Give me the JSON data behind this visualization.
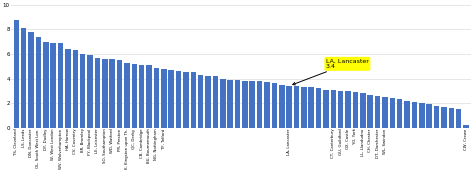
{
  "values": [
    8.8,
    8.1,
    7.8,
    7.4,
    7.0,
    6.9,
    6.9,
    6.4,
    6.3,
    6.0,
    5.9,
    5.7,
    5.6,
    5.6,
    5.5,
    5.3,
    5.2,
    5.1,
    5.1,
    4.9,
    4.8,
    4.7,
    4.6,
    4.5,
    4.5,
    4.3,
    4.2,
    4.2,
    4.0,
    3.9,
    3.9,
    3.8,
    3.8,
    3.8,
    3.7,
    3.6,
    3.5,
    3.4,
    3.4,
    3.3,
    3.3,
    3.2,
    3.1,
    3.1,
    3.0,
    3.0,
    2.9,
    2.8,
    2.7,
    2.6,
    2.5,
    2.4,
    2.3,
    2.2,
    2.1,
    2.0,
    1.9,
    1.8,
    1.7,
    1.6,
    1.5,
    0.2
  ],
  "labels": [
    "TS, Cleveland",
    "LS, Leeds",
    "DN, Doncaster",
    "OL, South West Lon.",
    "DY, Dudley",
    "W, West London",
    "WV, Wolverhampton",
    "HA, Harrow",
    "CV, Coventry",
    "BR, Bromley",
    "FY, Blackpool",
    "LE, Leicester",
    "SO, Southampton",
    "WD, Watford",
    "PR, Preston",
    "K, Kingston upon Th.",
    "QC, Derby",
    "CB, Cambridge",
    "BU, Bournemouth",
    "NG, Nottingham",
    "TF, Telford",
    "",
    "",
    "",
    "",
    "",
    "",
    "",
    "",
    "",
    "",
    "",
    "",
    "",
    "",
    "",
    "",
    "LA, Lancaster",
    "",
    "",
    "",
    "",
    "",
    "CT, Canterbury",
    "GU, Guildford",
    "OX, Castle",
    "YO, York",
    "LL, Llandudno",
    "CH, Chester",
    "DT, Dorchester",
    "WL, Swindon",
    "",
    "",
    "",
    "",
    "",
    "",
    "",
    "",
    "",
    "",
    "CW, Crewe"
  ],
  "highlight_index": 37,
  "highlight_value": 3.4,
  "highlight_label": "LA, Lancaster\n3.4",
  "bar_color": "#4472c4",
  "annotation_bg": "#ffff00",
  "ylim": [
    0,
    10
  ],
  "yticks": [
    0,
    2,
    4,
    6,
    8,
    10
  ],
  "background_color": "#ffffff"
}
